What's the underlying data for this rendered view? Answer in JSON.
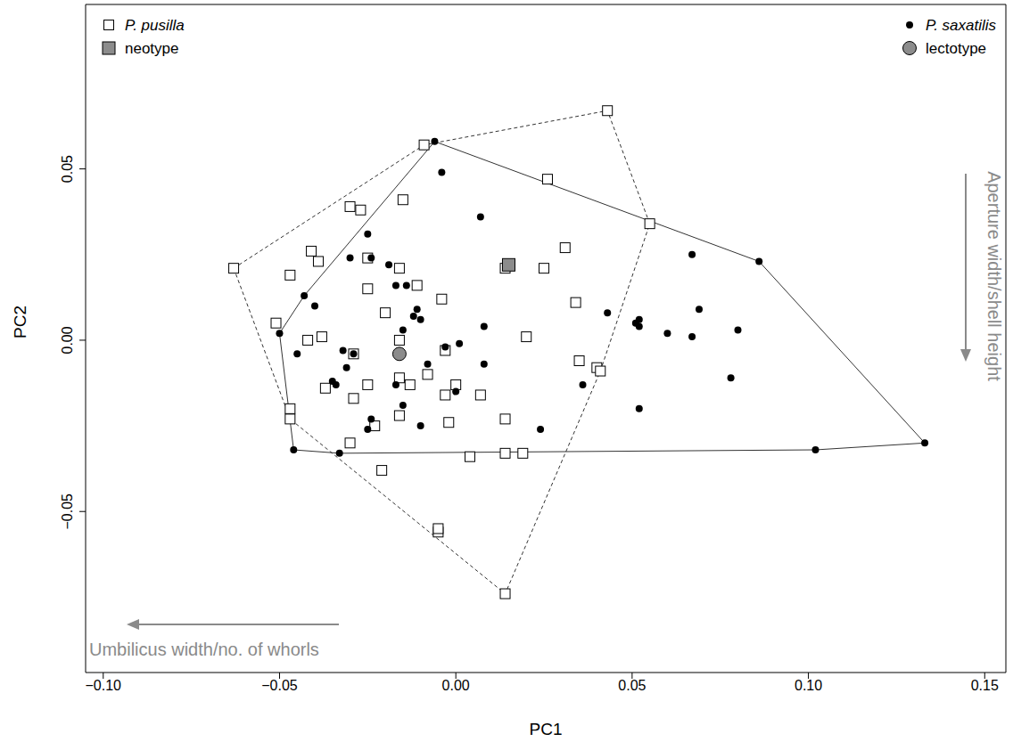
{
  "chart_data": {
    "type": "scatter",
    "xlabel": "PC1",
    "ylabel": "PC2",
    "xlim": [
      -0.105,
      0.156
    ],
    "ylim": [
      -0.097,
      0.098
    ],
    "xticks": [
      {
        "value": -0.1,
        "label": "−0.10"
      },
      {
        "value": -0.05,
        "label": "−0.05"
      },
      {
        "value": 0,
        "label": "0.00"
      },
      {
        "value": 0.05,
        "label": "0.05"
      },
      {
        "value": 0.1,
        "label": "0.10"
      },
      {
        "value": 0.15,
        "label": "0.15"
      }
    ],
    "yticks": [
      {
        "value": -0.05,
        "label": "−0.05"
      },
      {
        "value": 0,
        "label": "0.00"
      },
      {
        "value": 0.05,
        "label": "0.05"
      }
    ],
    "grid": false,
    "series": [
      {
        "name": "P. pusilla",
        "marker": "open square",
        "color": "#000000",
        "line_style": "dashed",
        "x": [
          -0.063,
          -0.03,
          -0.009,
          0.043,
          0.055,
          0.014,
          -0.005,
          -0.005,
          -0.047,
          -0.047,
          -0.051,
          -0.047,
          -0.041,
          -0.039,
          -0.027,
          -0.015,
          -0.038,
          -0.042,
          -0.037,
          -0.029,
          -0.029,
          -0.025,
          -0.025,
          -0.025,
          -0.023,
          -0.03,
          -0.021,
          -0.02,
          -0.016,
          -0.016,
          -0.016,
          -0.016,
          -0.013,
          -0.011,
          -0.008,
          -0.004,
          -0.003,
          -0.003,
          -0.002,
          0.0,
          0.004,
          0.007,
          0.014,
          0.014,
          0.014,
          0.019,
          0.02,
          0.025,
          0.026,
          0.031,
          0.034,
          0.035,
          0.04,
          0.041
        ],
        "y": [
          0.021,
          0.039,
          0.057,
          0.067,
          0.034,
          -0.074,
          -0.056,
          -0.055,
          -0.02,
          -0.023,
          0.005,
          0.019,
          0.026,
          0.023,
          0.038,
          0.041,
          0.001,
          0.0,
          -0.014,
          -0.004,
          -0.017,
          -0.013,
          0.024,
          0.015,
          -0.025,
          -0.03,
          -0.038,
          0.008,
          0.021,
          0.0,
          -0.022,
          -0.011,
          -0.013,
          0.016,
          -0.01,
          0.012,
          -0.003,
          -0.016,
          -0.024,
          -0.013,
          -0.034,
          -0.016,
          0.021,
          -0.023,
          -0.033,
          -0.033,
          0.001,
          0.021,
          0.047,
          0.027,
          0.011,
          -0.006,
          -0.008,
          -0.009
        ]
      },
      {
        "name": "neotype",
        "marker": "square",
        "color": "#8c8c8c",
        "x": [
          0.015
        ],
        "y": [
          0.022
        ]
      },
      {
        "name": "P. saxatilis",
        "marker": "dot",
        "color": "#000000",
        "line_style": "solid",
        "x": [
          -0.006,
          0.086,
          0.133,
          0.102,
          -0.033,
          -0.046,
          -0.05,
          -0.004,
          -0.025,
          -0.043,
          -0.03,
          -0.024,
          -0.019,
          -0.017,
          -0.014,
          -0.012,
          -0.011,
          -0.01,
          -0.04,
          -0.045,
          -0.032,
          -0.031,
          -0.035,
          -0.034,
          -0.029,
          -0.024,
          -0.025,
          -0.015,
          -0.017,
          -0.015,
          -0.01,
          -0.008,
          -0.003,
          0.0,
          0.001,
          0.007,
          0.008,
          0.008,
          0.024,
          0.036,
          0.043,
          0.051,
          0.052,
          0.052,
          0.052,
          0.06,
          0.067,
          0.067,
          0.069,
          0.078,
          0.08
        ],
        "y": [
          0.058,
          0.023,
          -0.03,
          -0.032,
          -0.033,
          -0.032,
          0.002,
          0.049,
          0.031,
          0.013,
          0.024,
          0.024,
          0.022,
          0.016,
          0.016,
          0.007,
          0.009,
          0.006,
          0.01,
          -0.004,
          -0.003,
          -0.008,
          -0.012,
          -0.013,
          -0.004,
          -0.023,
          -0.026,
          0.003,
          -0.013,
          -0.019,
          -0.025,
          -0.007,
          -0.002,
          -0.015,
          -0.001,
          0.036,
          0.004,
          -0.007,
          -0.026,
          -0.013,
          0.008,
          0.005,
          0.004,
          0.006,
          -0.02,
          0.002,
          0.025,
          0.001,
          0.009,
          -0.011,
          0.003
        ]
      },
      {
        "name": "lectotype",
        "marker": "circle",
        "color": "#8c8c8c",
        "x": [
          -0.016
        ],
        "y": [
          -0.004
        ]
      }
    ],
    "annotations": [
      {
        "text": "Umbilicus width/no. of whorls",
        "arrow": "left"
      },
      {
        "text": "Aperture width/shell height",
        "arrow": "down"
      }
    ]
  }
}
